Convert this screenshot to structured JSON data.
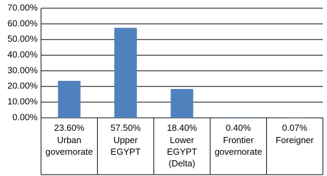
{
  "chart_data": {
    "type": "bar",
    "categories": [
      "Urban governorate",
      "Upper EGYPT",
      "Lower EGYPT (Delta)",
      "Frontier governorate",
      "Foreigner"
    ],
    "values": [
      23.6,
      57.5,
      18.4,
      0.4,
      0.07
    ],
    "value_labels": [
      "23.60%",
      "57.50%",
      "18.40%",
      "0.40%",
      "0.07%"
    ],
    "color": "#4f81bd",
    "ylim": [
      0,
      70
    ],
    "yticks": [
      {
        "value": 0,
        "label": "0.00%"
      },
      {
        "value": 10,
        "label": "10.00%"
      },
      {
        "value": 20,
        "label": "20.00%"
      },
      {
        "value": 30,
        "label": "30.00%"
      },
      {
        "value": 40,
        "label": "40.00%"
      },
      {
        "value": 50,
        "label": "50.00%"
      },
      {
        "value": 60,
        "label": "60.00%"
      },
      {
        "value": 70,
        "label": "70.00%"
      }
    ],
    "grid": true
  }
}
